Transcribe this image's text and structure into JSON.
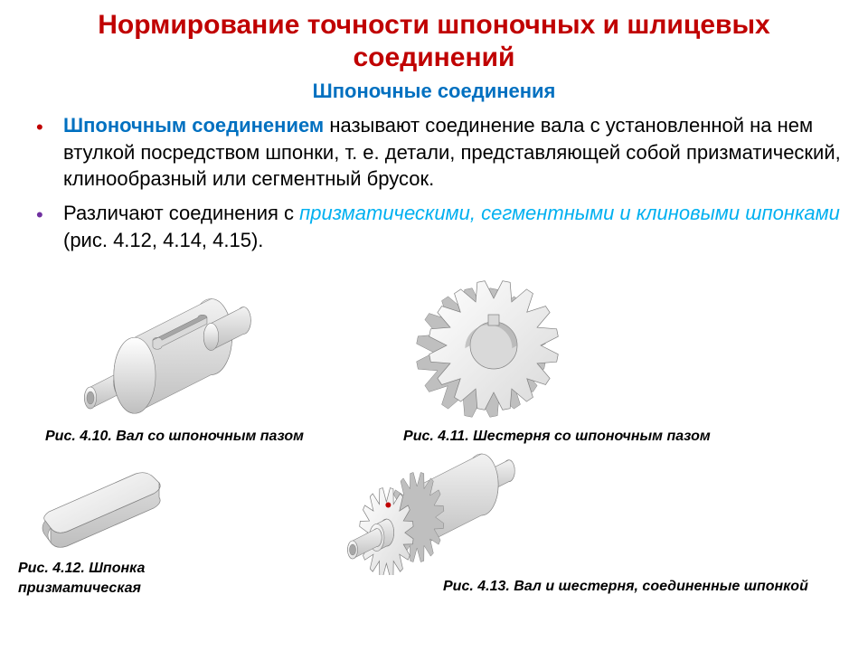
{
  "colors": {
    "title": "#c00000",
    "subtitle": "#0070c0",
    "bullet1_marker": "#c00000",
    "bullet1_emph": "#0070c0",
    "bullet2_marker": "#7030a0",
    "bullet2_emph": "#00b0f0",
    "body_text": "#000000",
    "caption": "#000000",
    "fig_light": "#f2f2f2",
    "fig_mid": "#d9d9d9",
    "fig_dark": "#bfbfbf",
    "fig_darker": "#a6a6a6",
    "fig_stroke": "#808080",
    "red_dot": "#c00000"
  },
  "title": "Нормирование точности шпоночных и шлицевых соединений",
  "subtitle": "Шпоночные соединения",
  "bullets": [
    {
      "emph": "Шпоночным соединением",
      "rest": " называют соединение вала с установленной на нем втулкой посредством шпонки, т. е. детали, представляющей собой призматический, клинообразный или сегментный брусок."
    },
    {
      "lead": "Различают соединения с ",
      "emph": "призматическими, сегментными и клиновыми шпонками",
      "rest": " (рис. 4.12, 4.14, 4.15)."
    }
  ],
  "figures": {
    "f10": "Рис. 4.10. Вал со шпоночным пазом",
    "f11": "Рис. 4.11. Шестерня со шпоночным пазом",
    "f12_line1": "Рис. 4.12. Шпонка",
    "f12_line2": "призматическая",
    "f13": "Рис. 4.13. Вал и шестерня, соединенные шпонкой"
  }
}
